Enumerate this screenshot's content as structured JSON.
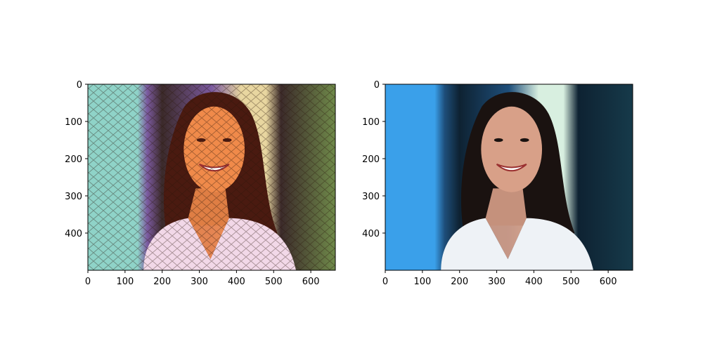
{
  "chart_data": [
    {
      "type": "image",
      "title": "",
      "xlabel": "",
      "ylabel": "",
      "xlim": [
        0,
        666
      ],
      "ylim": [
        500,
        0
      ],
      "xticks": [
        0,
        100,
        200,
        300,
        400,
        500,
        600
      ],
      "yticks": [
        0,
        100,
        200,
        300,
        400
      ],
      "image_content": "stylized portrait of a smiling woman with dark wavy hair, painterly mosaic style",
      "palette": {
        "bg_left": "#8fd3c8",
        "bg_mid": "#7b5aa0",
        "bg_dark": "#3b2a2a",
        "bg_right": "#6f8a4a",
        "light": "#e8d6a0",
        "hair": "#4a1a10",
        "skin": "#f08a4a",
        "shirt": "#f2d8e8"
      }
    },
    {
      "type": "image",
      "title": "",
      "xlabel": "",
      "ylabel": "",
      "xlim": [
        0,
        666
      ],
      "ylim": [
        500,
        0
      ],
      "xticks": [
        0,
        100,
        200,
        300,
        400,
        500,
        600
      ],
      "yticks": [
        0,
        100,
        200,
        300,
        400
      ],
      "image_content": "photo portrait of a smiling woman with dark wavy hair in a white top",
      "palette": {
        "bg_left": "#3aa0ea",
        "bg_mid": "#1e4e7a",
        "bg_dark": "#0e2232",
        "bg_right": "#163a4a",
        "light": "#d8efe0",
        "hair": "#1a1210",
        "skin": "#d8a088",
        "shirt": "#eef2f6"
      }
    }
  ]
}
